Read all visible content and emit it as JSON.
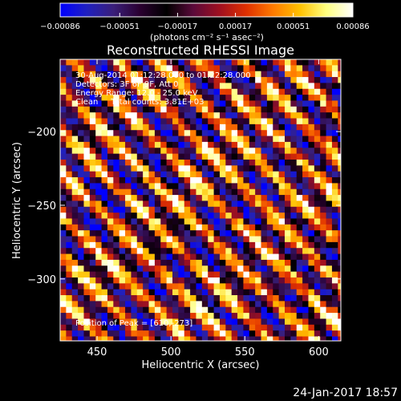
{
  "chart_data": {
    "type": "heatmap",
    "title": "Reconstructed RHESSI Image",
    "xlabel": "Heliocentric X (arcsec)",
    "ylabel": "Heliocentric Y (arcsec)",
    "xlim": [
      425,
      615
    ],
    "ylim": [
      -342,
      -151
    ],
    "x_ticks": [
      {
        "value": 450,
        "label": "450"
      },
      {
        "value": 500,
        "label": "500"
      },
      {
        "value": 550,
        "label": "550"
      },
      {
        "value": 600,
        "label": "600"
      }
    ],
    "y_ticks": [
      {
        "value": -200,
        "label": "−200"
      },
      {
        "value": -250,
        "label": "−250"
      },
      {
        "value": -300,
        "label": "−300"
      }
    ],
    "colorbar": {
      "range": [
        -0.00086,
        0.00086
      ],
      "tick_labels": [
        "−0.00086",
        "−0.00051",
        "−0.00017",
        "0.00017",
        "0.00051",
        "0.00086"
      ],
      "tick_values": [
        -0.00086,
        -0.00051,
        -0.00017,
        0.00017,
        0.00051,
        0.00086
      ],
      "units_label": "(photons cm⁻² s⁻¹ asec⁻²)",
      "colormap": [
        "#0000ff",
        "#2020c0",
        "#3a1f7a",
        "#2a0030",
        "#000000",
        "#5a0a3a",
        "#a01020",
        "#e03000",
        "#ff7a00",
        "#ffc000",
        "#ffff80",
        "#ffffff"
      ]
    },
    "annotations": [
      "30-Aug-2014 01:12:28.000 to 01:22:28.000",
      "Detectors: 3F 6F 9F, Att 0",
      "Energy Range: 12.0 - 25.0 keV",
      "Clean     Total counts: 3.81E+03"
    ],
    "peak_label": "Position of Peak = [610,-273]",
    "image_pattern": {
      "pixel_size_arcsec": 4,
      "stripe_direction": "diagonal, upper-left to lower-right",
      "stripe_period_arcsec": 20,
      "value_min": -0.00086,
      "value_max": 0.00086
    }
  },
  "footer": {
    "timestamp": "24-Jan-2017 18:57"
  }
}
